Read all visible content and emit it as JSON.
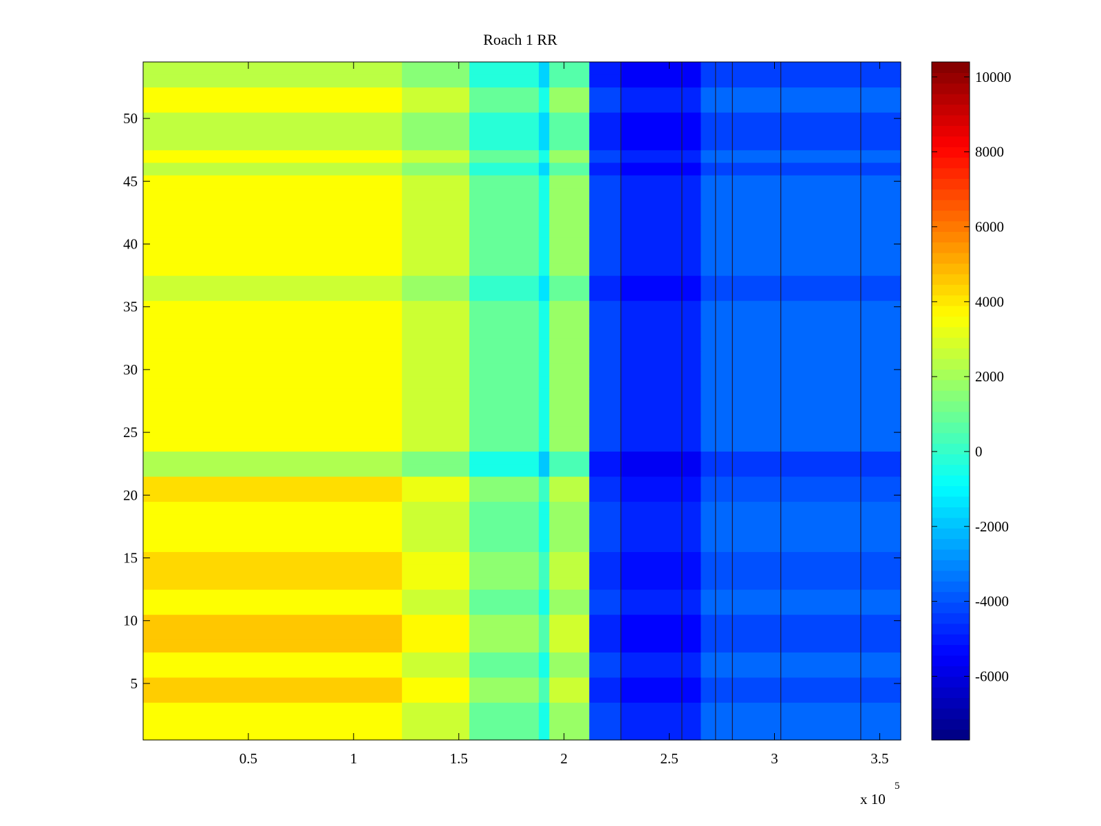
{
  "chart_data": {
    "type": "heatmap",
    "title": "Roach 1 RR",
    "xlabel": "",
    "ylabel": "",
    "x_multiplier_label": {
      "base": "x 10",
      "exponent": "5"
    },
    "xlim": [
      0.0,
      3.6
    ],
    "ylim": [
      0.5,
      54.5
    ],
    "x_ticks": [
      0.5,
      1,
      1.5,
      2,
      2.5,
      3,
      3.5
    ],
    "x_tick_labels": [
      "0.5",
      "1",
      "1.5",
      "2",
      "2.5",
      "3",
      "3.5"
    ],
    "y_ticks": [
      5,
      10,
      15,
      20,
      25,
      30,
      35,
      40,
      45,
      50
    ],
    "y_tick_labels": [
      "5",
      "10",
      "15",
      "20",
      "25",
      "30",
      "35",
      "40",
      "45",
      "50"
    ],
    "rows": 54,
    "x_bins": [
      0.0,
      1.23,
      1.55,
      1.88,
      1.93,
      2.12,
      2.27,
      2.65,
      3.6
    ],
    "segment_base_values": [
      3600,
      2700,
      900,
      -500,
      1800,
      -4200,
      -4800,
      -3600
    ],
    "row_offsets": [
      {
        "rows": [
          1,
          2,
          3
        ],
        "offset": 0
      },
      {
        "rows": [
          4,
          5
        ],
        "offset": 900
      },
      {
        "rows": [
          8,
          9,
          10
        ],
        "offset": 1000
      },
      {
        "rows": [
          13,
          14,
          15
        ],
        "offset": 700
      },
      {
        "rows": [
          20,
          21
        ],
        "offset": 600
      },
      {
        "rows": [
          22,
          23
        ],
        "offset": -1400
      },
      {
        "rows": [
          36,
          37
        ],
        "offset": -900
      },
      {
        "rows": [
          46,
          48,
          49,
          50
        ],
        "offset": -1100
      },
      {
        "rows": [
          53,
          54
        ],
        "offset": -1200
      }
    ],
    "dark_vertical_lines_x": [
      2.27,
      2.56,
      2.72,
      2.8,
      3.03,
      3.41
    ],
    "colorbar": {
      "colormap": "jet",
      "range": [
        -7700,
        10400
      ],
      "ticks": [
        -6000,
        -4000,
        -2000,
        0,
        2000,
        4000,
        6000,
        8000,
        10000
      ],
      "tick_labels": [
        "-6000",
        "-4000",
        "-2000",
        "0",
        "2000",
        "4000",
        "6000",
        "8000",
        "10000"
      ],
      "levels": 64
    }
  }
}
